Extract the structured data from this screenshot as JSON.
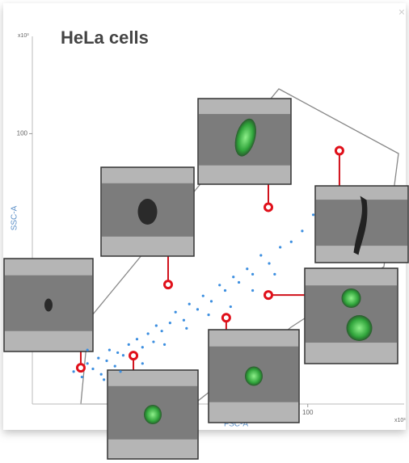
{
  "chart_data": {
    "type": "scatter",
    "title": "HeLa cells",
    "x_label": "FSC-A",
    "y_label": "SSC-A",
    "x_exponent": "x10³",
    "y_exponent": "x10³",
    "xlim": [
      0,
      135
    ],
    "ylim": [
      0,
      136
    ],
    "xticks": [
      100
    ],
    "yticks": [
      100
    ],
    "series": [
      {
        "color": "#3d8fe0",
        "x": [
          15,
          18,
          20,
          22,
          24,
          25,
          27,
          28,
          30,
          31,
          33,
          35,
          36,
          38,
          40,
          42,
          44,
          45,
          47,
          50,
          52,
          55,
          57,
          60,
          62,
          65,
          68,
          70,
          73,
          75,
          78,
          80,
          83,
          86,
          90,
          94,
          98,
          102,
          20,
          26,
          32,
          40,
          48,
          56,
          64,
          72,
          80,
          88
        ],
        "values": [
          12,
          10,
          15,
          13,
          17,
          11,
          16,
          20,
          14,
          19,
          18,
          22,
          17,
          24,
          21,
          26,
          23,
          29,
          27,
          30,
          34,
          31,
          37,
          35,
          40,
          38,
          44,
          42,
          47,
          45,
          50,
          48,
          55,
          52,
          58,
          60,
          64,
          70,
          20,
          9,
          12,
          15,
          22,
          28,
          33,
          36,
          42,
          48
        ]
      },
      {
        "color": "#e0101a",
        "x": [
          17.6,
          36.7,
          49.3,
          70.4,
          85.7,
          85.7,
          111.5
        ],
        "values": [
          13.4,
          17.9,
          44.2,
          31.9,
          40.3,
          72.8,
          93.7
        ]
      }
    ]
  }
}
